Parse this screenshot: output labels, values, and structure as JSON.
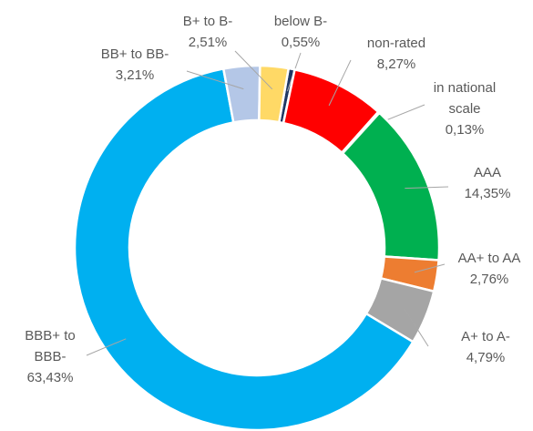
{
  "chart_data": {
    "type": "donut",
    "categories": [
      "below B-",
      "non-rated",
      "in national scale",
      "AAA",
      "AA+ to AA",
      "A+ to A-",
      "BBB+ to BBB-",
      "BB+ to BB-",
      "B+ to B-"
    ],
    "values": [
      0.55,
      8.27,
      0.13,
      14.35,
      2.76,
      4.79,
      63.43,
      3.21,
      2.51
    ],
    "value_labels": [
      "0,55%",
      "8,27%",
      "0,13%",
      "14,35%",
      "2,76%",
      "4,79%",
      "63,43%",
      "3,21%",
      "2,51%"
    ],
    "colors": [
      "#1f3864",
      "#ff0000",
      "#264478",
      "#00b050",
      "#ed7d31",
      "#a5a5a5",
      "#00b0f0",
      "#b4c7e7",
      "#ffd966"
    ]
  }
}
